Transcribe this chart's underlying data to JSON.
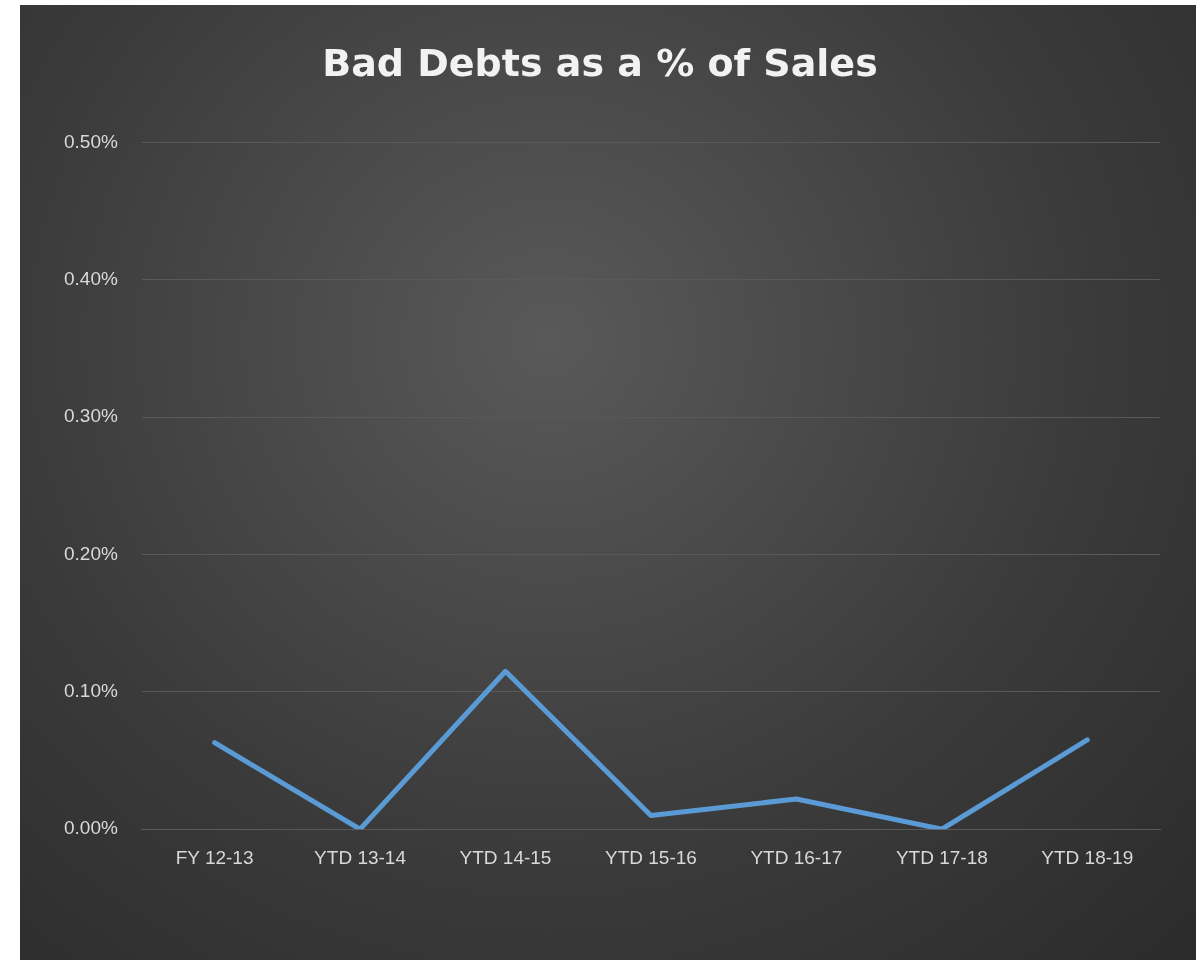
{
  "chart_data": {
    "type": "line",
    "title": "Bad Debts as a % of Sales",
    "categories": [
      "FY 12-13",
      "YTD 13-14",
      "YTD 14-15",
      "YTD 15-16",
      "YTD 16-17",
      "YTD 17-18",
      "YTD 18-19"
    ],
    "series": [
      {
        "color": "#5b9bd5",
        "values": [
          0.063,
          0,
          0.115,
          0.01,
          0.022,
          0,
          0.065
        ]
      }
    ],
    "ylim": [
      0,
      0.5
    ],
    "yticks": [
      {
        "value": 0,
        "label": "0.00%"
      },
      {
        "value": 0.1,
        "label": "0.10%"
      },
      {
        "value": 0.2,
        "label": "0.20%"
      },
      {
        "value": 0.3,
        "label": "0.30%"
      },
      {
        "value": 0.4,
        "label": "0.40%"
      },
      {
        "value": 0.5,
        "label": "0.50%"
      }
    ],
    "grid": "y",
    "legend": false,
    "marker": "none",
    "line_style": "solid"
  }
}
